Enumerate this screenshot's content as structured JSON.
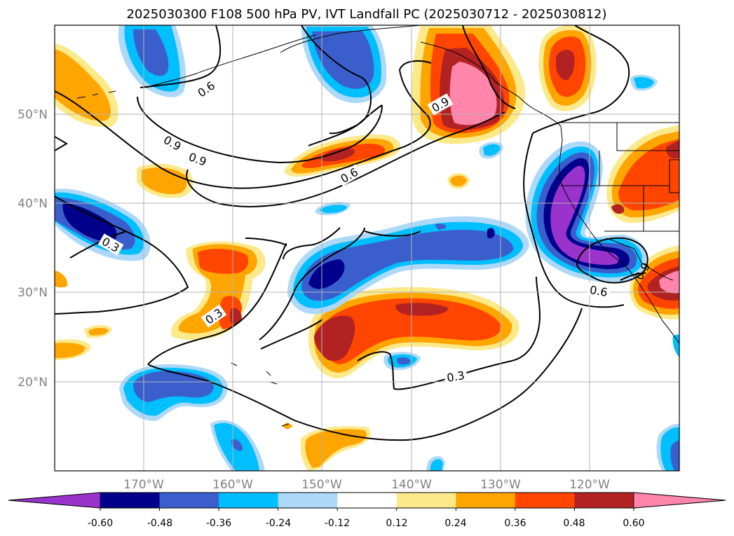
{
  "title": "2025030300 F108 500 hPa PV, IVT Landfall PC (2025030712 - 2025030812)",
  "map": {
    "lon_range": [
      -180,
      -110
    ],
    "lat_range": [
      10,
      60
    ],
    "lat_ticks": [
      "50°N",
      "40°N",
      "30°N",
      "20°N"
    ],
    "lon_ticks": [
      "170°W",
      "160°W",
      "150°W",
      "140°W",
      "130°W",
      "120°W"
    ],
    "gridlines": true
  },
  "contour_labels": [
    "0.6",
    "0.9",
    "0.9",
    "0.9",
    "0.6",
    "0.3",
    "0.3",
    "0.3",
    "0.6",
    "0.9"
  ],
  "colorbar": {
    "ticks": [
      "-0.60",
      "-0.48",
      "-0.36",
      "-0.24",
      "-0.12",
      "0.12",
      "0.24",
      "0.36",
      "0.48",
      "0.60"
    ],
    "colors": [
      "#9933cc",
      "#00008b",
      "#3a5fcd",
      "#00bfff",
      "#add8f7",
      "#ffffff",
      "#fce98a",
      "#ffa500",
      "#ff4500",
      "#b22222",
      "#ff85aa"
    ],
    "extend": "both"
  }
}
